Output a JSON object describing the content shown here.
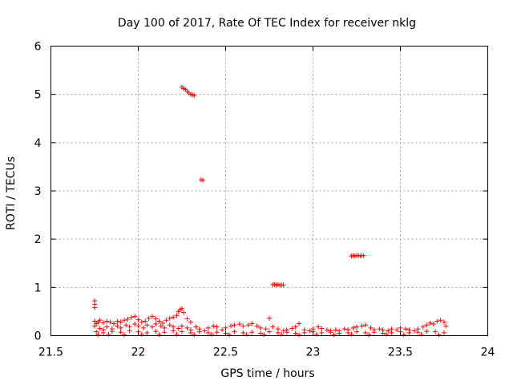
{
  "chart_data": {
    "type": "scatter",
    "title": "Day 100 of 2017, Rate Of TEC Index for receiver nklg",
    "xlabel": "GPS time / hours",
    "ylabel": "ROTI / TECUs",
    "xlim": [
      21.5,
      24
    ],
    "ylim": [
      0,
      6
    ],
    "x_ticks": [
      21.5,
      22,
      22.5,
      23,
      23.5,
      24
    ],
    "x_tick_labels": [
      "21.5",
      "22",
      "22.5",
      "23",
      "23.5",
      "24"
    ],
    "y_ticks": [
      0,
      1,
      2,
      3,
      4,
      5,
      6
    ],
    "y_tick_labels": [
      "0",
      "1",
      "2",
      "3",
      "4",
      "5",
      "6"
    ],
    "grid": true,
    "marker": "+",
    "marker_color": "#ff0000",
    "series": [
      {
        "points": [
          [
            21.75,
            0.72
          ],
          [
            21.75,
            0.65
          ],
          [
            21.75,
            0.58
          ],
          [
            21.75,
            0.3
          ],
          [
            21.76,
            0.25
          ],
          [
            21.77,
            0.28
          ],
          [
            21.78,
            0.32
          ],
          [
            21.8,
            0.27
          ],
          [
            21.82,
            0.3
          ],
          [
            21.84,
            0.28
          ],
          [
            21.86,
            0.25
          ],
          [
            21.88,
            0.3
          ],
          [
            21.9,
            0.28
          ],
          [
            21.92,
            0.32
          ],
          [
            21.94,
            0.34
          ],
          [
            21.96,
            0.38
          ],
          [
            21.98,
            0.4
          ],
          [
            22.0,
            0.33
          ],
          [
            22.02,
            0.28
          ],
          [
            22.04,
            0.3
          ],
          [
            22.06,
            0.36
          ],
          [
            22.08,
            0.4
          ],
          [
            22.1,
            0.35
          ],
          [
            22.12,
            0.3
          ],
          [
            22.14,
            0.26
          ],
          [
            22.16,
            0.32
          ],
          [
            22.18,
            0.36
          ],
          [
            22.2,
            0.38
          ],
          [
            22.22,
            0.42
          ],
          [
            22.23,
            0.5
          ],
          [
            22.24,
            0.54
          ],
          [
            22.25,
            0.56
          ],
          [
            22.26,
            0.48
          ],
          [
            22.28,
            0.35
          ],
          [
            22.3,
            0.28
          ],
          [
            21.75,
            0.2
          ],
          [
            21.78,
            0.15
          ],
          [
            21.8,
            0.12
          ],
          [
            21.82,
            0.18
          ],
          [
            21.85,
            0.14
          ],
          [
            21.88,
            0.2
          ],
          [
            21.9,
            0.16
          ],
          [
            21.93,
            0.22
          ],
          [
            21.95,
            0.18
          ],
          [
            21.98,
            0.24
          ],
          [
            22.0,
            0.2
          ],
          [
            22.03,
            0.16
          ],
          [
            22.05,
            0.22
          ],
          [
            22.08,
            0.18
          ],
          [
            22.1,
            0.24
          ],
          [
            22.13,
            0.2
          ],
          [
            22.15,
            0.16
          ],
          [
            22.18,
            0.22
          ],
          [
            22.2,
            0.18
          ],
          [
            22.23,
            0.15
          ],
          [
            22.25,
            0.2
          ],
          [
            22.28,
            0.16
          ],
          [
            22.3,
            0.12
          ],
          [
            22.33,
            0.18
          ],
          [
            22.35,
            0.14
          ],
          [
            22.38,
            0.1
          ],
          [
            22.4,
            0.16
          ],
          [
            22.43,
            0.2
          ],
          [
            22.45,
            0.18
          ],
          [
            22.48,
            0.12
          ],
          [
            22.5,
            0.16
          ],
          [
            22.53,
            0.2
          ],
          [
            22.55,
            0.22
          ],
          [
            22.58,
            0.24
          ],
          [
            22.6,
            0.2
          ],
          [
            22.63,
            0.22
          ],
          [
            22.65,
            0.25
          ],
          [
            22.68,
            0.2
          ],
          [
            22.7,
            0.16
          ],
          [
            22.73,
            0.14
          ],
          [
            22.75,
            0.36
          ],
          [
            22.77,
            0.18
          ],
          [
            22.8,
            0.14
          ],
          [
            22.83,
            0.1
          ],
          [
            22.85,
            0.12
          ],
          [
            22.88,
            0.15
          ],
          [
            22.9,
            0.18
          ],
          [
            22.92,
            0.25
          ],
          [
            22.95,
            0.12
          ],
          [
            22.98,
            0.1
          ],
          [
            23.0,
            0.14
          ],
          [
            23.03,
            0.18
          ],
          [
            23.05,
            0.15
          ],
          [
            23.08,
            0.12
          ],
          [
            23.1,
            0.1
          ],
          [
            23.13,
            0.12
          ],
          [
            23.15,
            0.1
          ],
          [
            23.18,
            0.14
          ],
          [
            23.2,
            0.12
          ],
          [
            23.23,
            0.16
          ],
          [
            23.25,
            0.18
          ],
          [
            23.28,
            0.2
          ],
          [
            23.3,
            0.22
          ],
          [
            23.33,
            0.16
          ],
          [
            23.35,
            0.12
          ],
          [
            23.38,
            0.14
          ],
          [
            23.4,
            0.12
          ],
          [
            23.43,
            0.1
          ],
          [
            23.45,
            0.14
          ],
          [
            23.48,
            0.12
          ],
          [
            23.5,
            0.16
          ],
          [
            23.53,
            0.14
          ],
          [
            23.55,
            0.12
          ],
          [
            23.58,
            0.1
          ],
          [
            23.6,
            0.14
          ],
          [
            23.63,
            0.18
          ],
          [
            23.65,
            0.22
          ],
          [
            23.67,
            0.26
          ],
          [
            23.69,
            0.24
          ],
          [
            23.71,
            0.3
          ],
          [
            23.73,
            0.32
          ],
          [
            23.75,
            0.28
          ],
          [
            23.76,
            0.2
          ],
          [
            21.76,
            0.08
          ],
          [
            21.8,
            0.06
          ],
          [
            21.85,
            0.09
          ],
          [
            21.9,
            0.07
          ],
          [
            21.95,
            0.1
          ],
          [
            22.0,
            0.08
          ],
          [
            22.05,
            0.06
          ],
          [
            22.1,
            0.09
          ],
          [
            22.15,
            0.07
          ],
          [
            22.2,
            0.1
          ],
          [
            22.25,
            0.08
          ],
          [
            22.3,
            0.06
          ],
          [
            22.35,
            0.08
          ],
          [
            22.4,
            0.06
          ],
          [
            22.45,
            0.07
          ],
          [
            22.5,
            0.05
          ],
          [
            22.55,
            0.08
          ],
          [
            22.6,
            0.06
          ],
          [
            22.65,
            0.07
          ],
          [
            22.7,
            0.05
          ],
          [
            22.75,
            0.08
          ],
          [
            22.8,
            0.06
          ],
          [
            22.85,
            0.07
          ],
          [
            22.9,
            0.05
          ],
          [
            22.95,
            0.06
          ],
          [
            23.0,
            0.08
          ],
          [
            23.05,
            0.06
          ],
          [
            23.1,
            0.07
          ],
          [
            23.15,
            0.05
          ],
          [
            23.2,
            0.06
          ],
          [
            23.25,
            0.08
          ],
          [
            23.3,
            0.06
          ],
          [
            23.35,
            0.07
          ],
          [
            23.4,
            0.05
          ],
          [
            23.45,
            0.06
          ],
          [
            23.5,
            0.08
          ],
          [
            23.55,
            0.06
          ],
          [
            23.6,
            0.07
          ],
          [
            23.65,
            0.09
          ],
          [
            23.7,
            0.08
          ],
          [
            23.75,
            0.06
          ],
          [
            21.77,
            0.02
          ],
          [
            21.83,
            0.03
          ],
          [
            21.92,
            0.02
          ],
          [
            22.02,
            0.03
          ],
          [
            22.12,
            0.02
          ],
          [
            22.22,
            0.03
          ],
          [
            22.32,
            0.02
          ],
          [
            22.42,
            0.03
          ],
          [
            22.52,
            0.02
          ],
          [
            22.62,
            0.03
          ],
          [
            22.72,
            0.02
          ],
          [
            22.82,
            0.03
          ],
          [
            22.92,
            0.02
          ],
          [
            23.02,
            0.03
          ],
          [
            23.12,
            0.02
          ],
          [
            23.22,
            0.03
          ],
          [
            23.32,
            0.02
          ],
          [
            23.42,
            0.03
          ],
          [
            23.52,
            0.02
          ],
          [
            23.62,
            0.03
          ],
          [
            23.72,
            0.02
          ],
          [
            22.25,
            5.15
          ],
          [
            22.26,
            5.12
          ],
          [
            22.27,
            5.1
          ],
          [
            22.28,
            5.06
          ],
          [
            22.29,
            5.03
          ],
          [
            22.3,
            5.0
          ],
          [
            22.31,
            4.99
          ],
          [
            22.32,
            4.98
          ],
          [
            22.36,
            3.23
          ],
          [
            22.37,
            3.22
          ],
          [
            22.77,
            1.06
          ],
          [
            22.78,
            1.06
          ],
          [
            22.79,
            1.05
          ],
          [
            22.8,
            1.06
          ],
          [
            22.81,
            1.05
          ],
          [
            22.82,
            1.05
          ],
          [
            22.83,
            1.05
          ],
          [
            23.22,
            1.65
          ],
          [
            23.23,
            1.66
          ],
          [
            23.24,
            1.65
          ],
          [
            23.25,
            1.66
          ],
          [
            23.26,
            1.66
          ],
          [
            23.27,
            1.65
          ],
          [
            23.28,
            1.66
          ],
          [
            23.29,
            1.66
          ]
        ]
      }
    ]
  }
}
